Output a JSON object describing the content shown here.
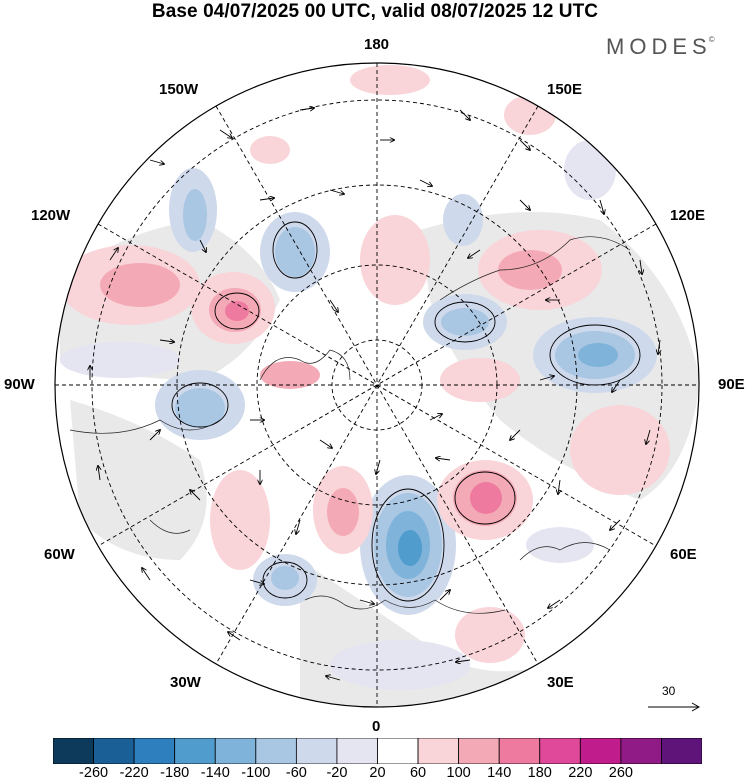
{
  "header": {
    "title": "Base 04/07/2025 00 UTC, valid 08/07/2025 12 UTC",
    "brand": "MODES",
    "brand_mark": "©"
  },
  "map": {
    "projection": "north-polar-stereographic",
    "meridian_labels": {
      "top": "180",
      "bottom": "0",
      "left": "90W",
      "right": "90E",
      "upper_left_1": "150W",
      "upper_left_2": "120W",
      "upper_right_1": "150E",
      "upper_right_2": "120E",
      "lower_left_1": "60W",
      "lower_left_2": "30W",
      "lower_right_1": "60E",
      "lower_right_2": "30E"
    },
    "gridlines": "dashed",
    "reference_vector": {
      "value": "30",
      "icon": "arrow-right-icon"
    }
  },
  "colorbar": {
    "ticks": [
      "-260",
      "-220",
      "-180",
      "-140",
      "-100",
      "-60",
      "-20",
      "20",
      "60",
      "100",
      "140",
      "180",
      "220",
      "260"
    ],
    "colors": [
      "#0d3a5a",
      "#1a5f95",
      "#2d7fbd",
      "#4f9ccd",
      "#7fb3da",
      "#a9c6e3",
      "#cfd9ec",
      "#e5e4f1",
      "#ffffff",
      "#f9d4d8",
      "#f4aab6",
      "#ef7aa0",
      "#e0489a",
      "#c01c8b",
      "#901a86",
      "#5e1478"
    ]
  }
}
